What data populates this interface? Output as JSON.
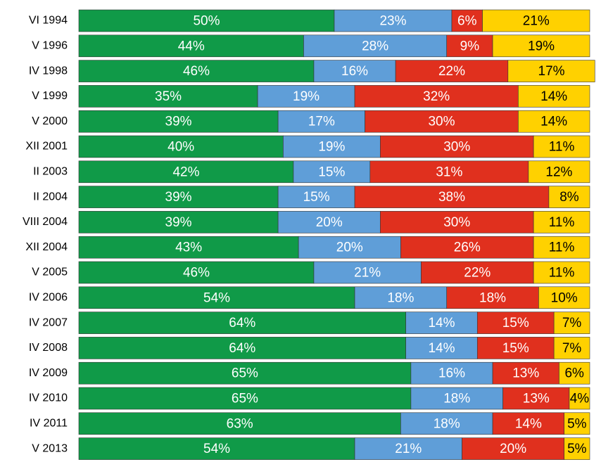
{
  "chart_data": {
    "type": "stacked-bar-horizontal",
    "categories": [
      "VI 1994",
      "V 1996",
      "IV  1998",
      "V  1999",
      "V  2000",
      "XII 2001",
      "II 2003",
      "II 2004",
      "VIII  2004",
      "XII 2004",
      "V 2005",
      "IV 2006",
      "IV 2007",
      "IV 2008",
      "IV 2009",
      "IV 2010",
      "IV 2011",
      "V 2013"
    ],
    "xlim": [
      0,
      100
    ],
    "series": [
      {
        "color": "#109a48",
        "label_color": "#ffffff",
        "values": [
          50,
          44,
          46,
          35,
          39,
          40,
          42,
          39,
          39,
          43,
          46,
          54,
          64,
          64,
          65,
          65,
          63,
          54
        ],
        "value_labels": [
          "50%",
          "44%",
          "46%",
          "35%",
          "39%",
          "40%",
          "42%",
          "39%",
          "39%",
          "43%",
          "46%",
          "54%",
          "64%",
          "64%",
          "65%",
          "65%",
          "63%",
          "54%"
        ]
      },
      {
        "color": "#5f9ed8",
        "label_color": "#ffffff",
        "values": [
          23,
          28,
          16,
          19,
          17,
          19,
          15,
          15,
          20,
          20,
          21,
          18,
          14,
          14,
          16,
          18,
          18,
          21
        ],
        "value_labels": [
          "23%",
          "28%",
          "16%",
          "19%",
          "17%",
          "19%",
          "15%",
          "15%",
          "20%",
          "20%",
          "21%",
          "18%",
          "14%",
          "14%",
          "16%",
          "18%",
          "18%",
          "21%"
        ]
      },
      {
        "color": "#e0301e",
        "label_color": "#ffffff",
        "values": [
          6,
          9,
          22,
          32,
          30,
          30,
          31,
          38,
          30,
          26,
          22,
          18,
          15,
          15,
          13,
          13,
          14,
          20
        ],
        "value_labels": [
          "6%",
          "9%",
          "22%",
          "32%",
          "30%",
          "30%",
          "31%",
          "38%",
          "30%",
          "26%",
          "22%",
          "18%",
          "15%",
          "15%",
          "13%",
          "13%",
          "14%",
          "20%"
        ]
      },
      {
        "color": "#ffd100",
        "label_color": "#000000",
        "values": [
          21,
          19,
          17,
          14,
          14,
          11,
          12,
          8,
          11,
          11,
          11,
          10,
          7,
          7,
          6,
          4,
          5,
          5
        ],
        "value_labels": [
          "21%",
          "19%",
          "17%",
          "14%",
          "14%",
          "11%",
          "12%",
          "8%",
          "11%",
          "11%",
          "11%",
          "10%",
          "7%",
          "7%",
          "6%",
          "4%",
          "5%",
          "5%"
        ]
      }
    ]
  }
}
